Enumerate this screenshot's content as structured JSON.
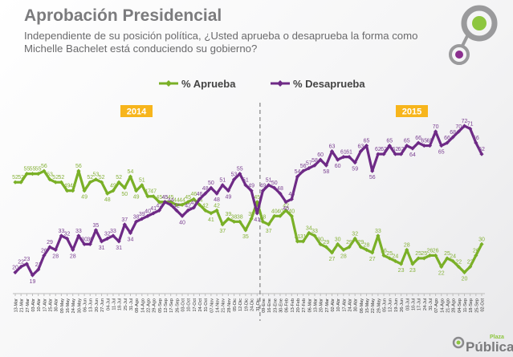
{
  "header": {
    "title": "Aprobación Presidencial",
    "subtitle": "Independiente de su posición política, ¿Usted aprueba o desaprueba la forma como Michelle Bachelet está conduciendo su gobierno?"
  },
  "logo": {
    "text": "Plaza Pública"
  },
  "chart_data": {
    "type": "line",
    "grid": false,
    "legend_placement": "top-center",
    "year_labels": [
      "2014",
      "2015"
    ],
    "colors": {
      "aprueba": "#7ab027",
      "desaprueba": "#6e2a86",
      "year_badge": "#f7b51c"
    },
    "categories": [
      "13-Mar",
      "21-Mar",
      "27-Mar",
      "03-Abr",
      "10-Abr",
      "17-Abr",
      "25-Abr",
      "30-Abr",
      "09-May",
      "16-May",
      "24-May",
      "30-May",
      "06-Jun",
      "13-Jun",
      "20-Jun",
      "27-Jun",
      "04-Jul",
      "11-Jul",
      "18-Jul",
      "25-Jul",
      "31-Jul",
      "08-Ago",
      "14-Ago",
      "22-Ago",
      "29-Ago",
      "05-Sep",
      "12-Sep",
      "17-Sep",
      "26-Sep",
      "03-Oct",
      "10-Oct",
      "17-Oct",
      "24-Oct",
      "31-Oct",
      "07-Nov",
      "14-Nov",
      "21-Nov",
      "28-Nov",
      "05-Dic",
      "12-Dic",
      "19-Dic",
      "24-Dic",
      "31-Dic",
      "09-Ene",
      "16-Ene",
      "23-Ene",
      "30-Ene",
      "06-Feb",
      "13-Feb",
      "20-Feb",
      "27-Feb",
      "06-Mar",
      "13-Mar",
      "20-Mar",
      "27-Mar",
      "02-Abr",
      "10-Abr",
      "17-Abr",
      "24-Abr",
      "30-Abr",
      "08-May",
      "15-May",
      "22-May",
      "29-May",
      "05-Jun",
      "12-Jun",
      "19-Jun",
      "26-Jun",
      "03-Jul",
      "10-Jul",
      "17-Jul",
      "24-Jul",
      "31-Jul",
      "07-Ago",
      "14-Ago",
      "21-Ago",
      "28-Ago",
      "04-Sep",
      "11-Sep",
      "18-Sep",
      "25-Sep",
      "02-Oct"
    ],
    "year_split_after": "31-Dic",
    "series": [
      {
        "name": "% Aprueba",
        "values": [
          52,
          52,
          55,
          55,
          55,
          56,
          53,
          52,
          52,
          49,
          49,
          56,
          49,
          52,
          53,
          52,
          48,
          49,
          52,
          50,
          54,
          49,
          51,
          47,
          47,
          45,
          45,
          45,
          44,
          44,
          45,
          46,
          44,
          42,
          41,
          42,
          37,
          39,
          38,
          38,
          35,
          39,
          45,
          38,
          37,
          40,
          40,
          42,
          40,
          31,
          31,
          34,
          33,
          30,
          29,
          27,
          30,
          28,
          29,
          32,
          29,
          28,
          27,
          33,
          26,
          25,
          24,
          23,
          28,
          23,
          25,
          25,
          26,
          26,
          22,
          25,
          24,
          22,
          20,
          22,
          26,
          30
        ]
      },
      {
        "name": "% Desaprueba",
        "values": [
          20,
          22,
          23,
          19,
          21,
          26,
          29,
          28,
          33,
          32,
          28,
          33,
          30,
          30,
          35,
          31,
          32,
          33,
          31,
          37,
          34,
          38,
          39,
          40,
          41,
          42,
          45,
          44,
          42,
          40,
          42,
          43,
          46,
          48,
          50,
          48,
          51,
          49,
          53,
          55,
          51,
          49,
          41,
          49,
          51,
          50,
          48,
          45,
          46,
          54,
          56,
          57,
          58,
          60,
          58,
          63,
          60,
          61,
          61,
          59,
          63,
          65,
          56,
          62,
          62,
          65,
          62,
          62,
          65,
          64,
          66,
          65,
          65,
          70,
          65,
          66,
          68,
          70,
          72,
          71,
          66,
          62
        ]
      }
    ],
    "ylim": [
      15,
      75
    ]
  }
}
